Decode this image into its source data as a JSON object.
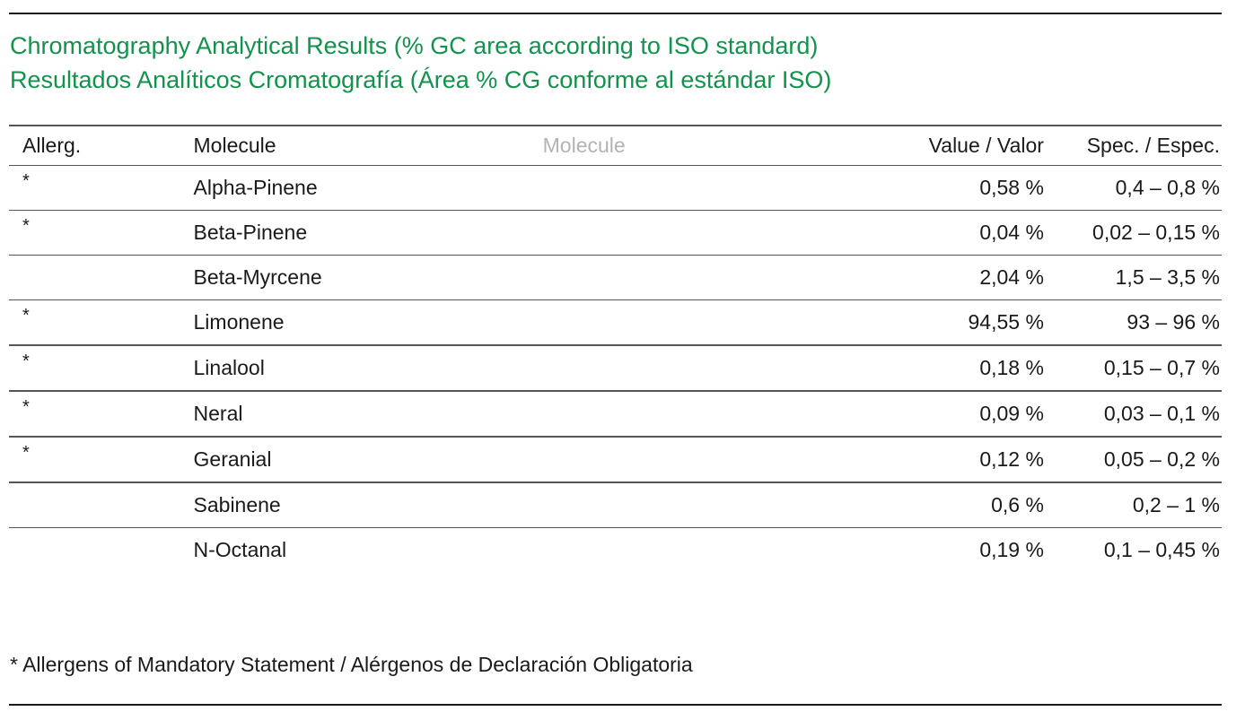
{
  "titles": {
    "english": "Chromatography Analytical Results (% GC area according to ISO standard)",
    "spanish": "Resultados Analíticos Cromatografía (Área % CG conforme al estándar ISO)"
  },
  "colors": {
    "title": "#12924c",
    "text": "#1a1a1a",
    "ghost_header": "#b3b3b3",
    "rule": "#555555"
  },
  "table": {
    "headers": {
      "allergen": "Allerg.",
      "molecule": "Molecule",
      "molecule_ghost": "Molecule",
      "value": "Value / Valor",
      "spec": "Spec. / Espec."
    },
    "rows": [
      {
        "allergen": "*",
        "molecule": "Alpha-Pinene",
        "value": "0,58 %",
        "spec": "0,4 – 0,8 %"
      },
      {
        "allergen": "*",
        "molecule": "Beta-Pinene",
        "value": "0,04 %",
        "spec": "0,02 – 0,15 %"
      },
      {
        "allergen": "",
        "molecule": "Beta-Myrcene",
        "value": "2,04 %",
        "spec": "1,5 – 3,5 %"
      },
      {
        "allergen": "*",
        "molecule": "Limonene",
        "value": "94,55 %",
        "spec": "93 – 96 %"
      },
      {
        "allergen": "*",
        "molecule": "Linalool",
        "value": "0,18 %",
        "spec": "0,15 – 0,7 %"
      },
      {
        "allergen": "*",
        "molecule": "Neral",
        "value": "0,09 %",
        "spec": "0,03 – 0,1 %"
      },
      {
        "allergen": "*",
        "molecule": "Geranial",
        "value": "0,12 %",
        "spec": "0,05 – 0,2 %"
      },
      {
        "allergen": "",
        "molecule": "Sabinene",
        "value": "0,6 %",
        "spec": "0,2 – 1 %"
      },
      {
        "allergen": "",
        "molecule": "N-Octanal",
        "value": "0,19 %",
        "spec": "0,1 – 0,45 %"
      }
    ]
  },
  "footnote": "* Allergens of Mandatory Statement / Alérgenos de Declaración Obligatoria"
}
